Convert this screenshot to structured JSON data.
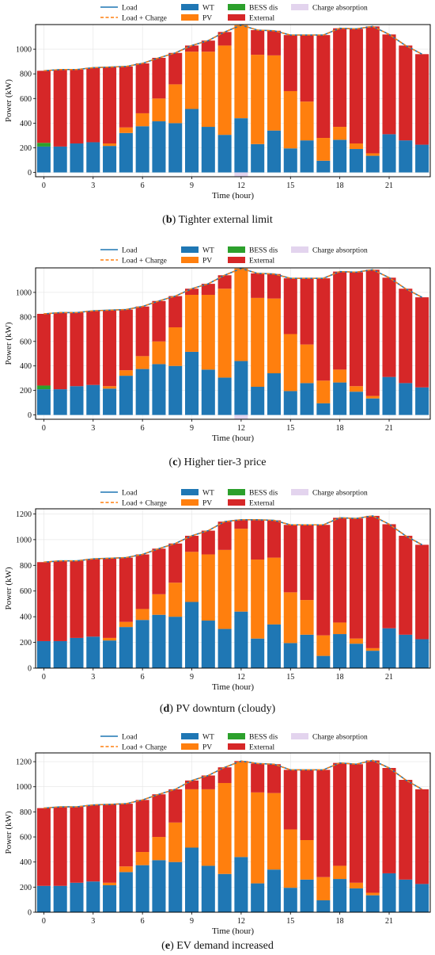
{
  "legend": {
    "load": "Load",
    "load_charge": "Load + Charge",
    "wt": "WT",
    "pv": "PV",
    "bess": "BESS dis",
    "external": "External",
    "charge": "Charge absorption"
  },
  "colors": {
    "wt": "#1f77b4",
    "pv": "#ff7f0e",
    "bess": "#2ca02c",
    "external": "#d62728",
    "charge": "#e3d4ee",
    "load_line": "#1f77b4",
    "load_charge_line": "#ff7f0e"
  },
  "chart_data": [
    {
      "type": "bar",
      "panel": "b",
      "caption_letter": "(b)",
      "caption_text": "Tighter external limit",
      "xlabel": "Time (hour)",
      "ylabel": "Power (kW)",
      "x": [
        0,
        1,
        2,
        3,
        4,
        5,
        6,
        7,
        8,
        9,
        10,
        11,
        12,
        13,
        14,
        15,
        16,
        17,
        18,
        19,
        20,
        21,
        22,
        23
      ],
      "xticks": [
        0,
        3,
        6,
        9,
        12,
        15,
        18,
        21
      ],
      "yticks": [
        0,
        200,
        400,
        600,
        800,
        1000
      ],
      "ylim": [
        -35,
        1200
      ],
      "stacked": true,
      "series": [
        {
          "name": "WT",
          "key": "wt",
          "values": [
            210,
            210,
            235,
            245,
            215,
            320,
            375,
            415,
            400,
            515,
            370,
            305,
            440,
            230,
            340,
            195,
            260,
            95,
            265,
            190,
            135,
            310,
            260,
            225
          ]
        },
        {
          "name": "PV",
          "key": "pv",
          "values": [
            0,
            0,
            0,
            0,
            20,
            45,
            105,
            185,
            315,
            465,
            610,
            725,
            755,
            725,
            610,
            465,
            315,
            185,
            105,
            45,
            20,
            0,
            0,
            0
          ]
        },
        {
          "name": "BESS dis",
          "key": "bess",
          "values": [
            30,
            0,
            0,
            0,
            0,
            0,
            0,
            0,
            0,
            0,
            0,
            0,
            0,
            0,
            0,
            0,
            0,
            0,
            0,
            0,
            0,
            0,
            0,
            0
          ]
        },
        {
          "name": "External",
          "key": "external",
          "values": [
            585,
            625,
            600,
            605,
            620,
            495,
            405,
            330,
            255,
            50,
            90,
            110,
            0,
            200,
            200,
            455,
            540,
            835,
            800,
            930,
            1030,
            810,
            770,
            735
          ]
        },
        {
          "name": "Charge absorption",
          "key": "charge",
          "values": [
            0,
            0,
            0,
            0,
            0,
            0,
            0,
            0,
            0,
            0,
            0,
            0,
            -35,
            0,
            0,
            0,
            0,
            0,
            0,
            0,
            0,
            0,
            0,
            0
          ]
        }
      ],
      "load": [
        825,
        835,
        835,
        850,
        855,
        860,
        885,
        930,
        970,
        1030,
        1070,
        1140,
        1195,
        1155,
        1150,
        1115,
        1115,
        1115,
        1170,
        1165,
        1185,
        1120,
        1030,
        960
      ],
      "load_charge": [
        825,
        835,
        835,
        850,
        855,
        860,
        885,
        930,
        970,
        1030,
        1070,
        1140,
        1195,
        1155,
        1150,
        1115,
        1115,
        1115,
        1170,
        1165,
        1185,
        1120,
        1030,
        960
      ]
    },
    {
      "type": "bar",
      "panel": "c",
      "caption_letter": "(c)",
      "caption_text": "Higher tier-3 price",
      "xlabel": "Time (hour)",
      "ylabel": "Power (kW)",
      "x": [
        0,
        1,
        2,
        3,
        4,
        5,
        6,
        7,
        8,
        9,
        10,
        11,
        12,
        13,
        14,
        15,
        16,
        17,
        18,
        19,
        20,
        21,
        22,
        23
      ],
      "xticks": [
        0,
        3,
        6,
        9,
        12,
        15,
        18,
        21
      ],
      "yticks": [
        0,
        200,
        400,
        600,
        800,
        1000
      ],
      "ylim": [
        -35,
        1200
      ],
      "stacked": true,
      "series": [
        {
          "name": "WT",
          "key": "wt",
          "values": [
            210,
            210,
            235,
            245,
            215,
            320,
            375,
            415,
            400,
            515,
            370,
            305,
            440,
            230,
            340,
            195,
            260,
            95,
            265,
            190,
            135,
            310,
            260,
            225
          ]
        },
        {
          "name": "PV",
          "key": "pv",
          "values": [
            0,
            0,
            0,
            0,
            20,
            45,
            105,
            185,
            315,
            465,
            610,
            725,
            755,
            725,
            610,
            465,
            315,
            185,
            105,
            45,
            20,
            0,
            0,
            0
          ]
        },
        {
          "name": "BESS dis",
          "key": "bess",
          "values": [
            30,
            0,
            0,
            0,
            0,
            0,
            0,
            0,
            0,
            0,
            0,
            0,
            0,
            0,
            0,
            0,
            0,
            0,
            0,
            0,
            0,
            0,
            0,
            0
          ]
        },
        {
          "name": "External",
          "key": "external",
          "values": [
            585,
            625,
            600,
            605,
            620,
            495,
            405,
            330,
            255,
            50,
            90,
            110,
            0,
            200,
            200,
            455,
            540,
            835,
            800,
            930,
            1030,
            810,
            770,
            735
          ]
        },
        {
          "name": "Charge absorption",
          "key": "charge",
          "values": [
            0,
            0,
            0,
            0,
            0,
            0,
            0,
            0,
            0,
            0,
            0,
            0,
            -35,
            0,
            0,
            0,
            0,
            0,
            0,
            0,
            0,
            0,
            0,
            0
          ]
        }
      ],
      "load": [
        825,
        835,
        835,
        850,
        855,
        860,
        885,
        930,
        970,
        1030,
        1070,
        1140,
        1195,
        1155,
        1150,
        1115,
        1115,
        1115,
        1170,
        1165,
        1185,
        1120,
        1030,
        960
      ],
      "load_charge": [
        825,
        835,
        835,
        850,
        855,
        860,
        885,
        930,
        970,
        1030,
        1070,
        1140,
        1195,
        1155,
        1150,
        1115,
        1115,
        1115,
        1170,
        1165,
        1185,
        1120,
        1030,
        960
      ]
    },
    {
      "type": "bar",
      "panel": "d",
      "caption_letter": "(d)",
      "caption_text": "PV downturn (cloudy)",
      "xlabel": "Time (hour)",
      "ylabel": "Power (kW)",
      "x": [
        0,
        1,
        2,
        3,
        4,
        5,
        6,
        7,
        8,
        9,
        10,
        11,
        12,
        13,
        14,
        15,
        16,
        17,
        18,
        19,
        20,
        21,
        22,
        23
      ],
      "xticks": [
        0,
        3,
        6,
        9,
        12,
        15,
        18,
        21
      ],
      "yticks": [
        0,
        200,
        400,
        600,
        800,
        1000,
        1200
      ],
      "ylim": [
        0,
        1240
      ],
      "stacked": true,
      "series": [
        {
          "name": "WT",
          "key": "wt",
          "values": [
            210,
            210,
            235,
            245,
            215,
            320,
            375,
            415,
            400,
            515,
            370,
            305,
            440,
            230,
            340,
            195,
            260,
            95,
            265,
            190,
            135,
            310,
            260,
            225
          ]
        },
        {
          "name": "PV",
          "key": "pv",
          "values": [
            0,
            0,
            0,
            0,
            20,
            40,
            85,
            160,
            265,
            390,
            515,
            615,
            645,
            615,
            520,
            395,
            270,
            160,
            90,
            40,
            20,
            0,
            0,
            0
          ]
        },
        {
          "name": "BESS dis",
          "key": "bess",
          "values": [
            0,
            0,
            0,
            0,
            0,
            0,
            0,
            0,
            0,
            0,
            0,
            0,
            0,
            0,
            0,
            0,
            0,
            0,
            0,
            0,
            0,
            0,
            0,
            0
          ]
        },
        {
          "name": "External",
          "key": "external",
          "values": [
            615,
            625,
            600,
            605,
            620,
            500,
            425,
            355,
            305,
            125,
            185,
            220,
            70,
            310,
            290,
            525,
            585,
            860,
            815,
            935,
            1030,
            810,
            770,
            735
          ]
        },
        {
          "name": "Charge absorption",
          "key": "charge",
          "values": [
            0,
            0,
            0,
            0,
            0,
            0,
            0,
            0,
            0,
            0,
            0,
            0,
            0,
            0,
            0,
            0,
            0,
            0,
            0,
            0,
            0,
            0,
            0,
            0
          ]
        }
      ],
      "load": [
        825,
        835,
        835,
        850,
        855,
        860,
        885,
        930,
        970,
        1030,
        1070,
        1140,
        1155,
        1155,
        1150,
        1115,
        1115,
        1115,
        1170,
        1165,
        1185,
        1120,
        1030,
        960
      ],
      "load_charge": [
        825,
        835,
        835,
        850,
        855,
        860,
        885,
        930,
        970,
        1030,
        1070,
        1140,
        1155,
        1155,
        1150,
        1115,
        1115,
        1115,
        1170,
        1165,
        1185,
        1120,
        1030,
        960
      ]
    },
    {
      "type": "bar",
      "panel": "e",
      "caption_letter": "(e)",
      "caption_text": "EV demand increased",
      "xlabel": "Time (hour)",
      "ylabel": "Power (kW)",
      "x": [
        0,
        1,
        2,
        3,
        4,
        5,
        6,
        7,
        8,
        9,
        10,
        11,
        12,
        13,
        14,
        15,
        16,
        17,
        18,
        19,
        20,
        21,
        22,
        23
      ],
      "xticks": [
        0,
        3,
        6,
        9,
        12,
        15,
        18,
        21
      ],
      "yticks": [
        0,
        200,
        400,
        600,
        800,
        1000,
        1200
      ],
      "ylim": [
        0,
        1270
      ],
      "stacked": true,
      "series": [
        {
          "name": "WT",
          "key": "wt",
          "values": [
            210,
            210,
            235,
            245,
            215,
            320,
            375,
            415,
            400,
            515,
            370,
            305,
            440,
            230,
            340,
            195,
            260,
            95,
            265,
            190,
            135,
            310,
            260,
            225
          ]
        },
        {
          "name": "PV",
          "key": "pv",
          "values": [
            0,
            0,
            0,
            0,
            20,
            45,
            105,
            185,
            315,
            465,
            610,
            725,
            755,
            725,
            610,
            465,
            315,
            185,
            105,
            45,
            20,
            0,
            0,
            0
          ]
        },
        {
          "name": "BESS dis",
          "key": "bess",
          "values": [
            0,
            0,
            0,
            0,
            0,
            0,
            0,
            0,
            0,
            0,
            0,
            0,
            0,
            0,
            0,
            0,
            0,
            0,
            0,
            0,
            0,
            0,
            0,
            0
          ]
        },
        {
          "name": "External",
          "key": "external",
          "values": [
            620,
            630,
            605,
            610,
            625,
            500,
            415,
            340,
            265,
            70,
            110,
            125,
            10,
            230,
            230,
            475,
            560,
            855,
            820,
            945,
            1055,
            840,
            795,
            755
          ]
        },
        {
          "name": "Charge absorption",
          "key": "charge",
          "values": [
            0,
            0,
            0,
            0,
            0,
            0,
            0,
            0,
            0,
            0,
            0,
            0,
            0,
            0,
            0,
            0,
            0,
            0,
            0,
            0,
            0,
            0,
            0,
            0
          ]
        }
      ],
      "load": [
        830,
        840,
        840,
        855,
        860,
        865,
        895,
        940,
        980,
        1050,
        1090,
        1155,
        1205,
        1185,
        1180,
        1135,
        1135,
        1135,
        1190,
        1180,
        1210,
        1150,
        1055,
        980
      ],
      "load_charge": [
        830,
        840,
        840,
        855,
        860,
        865,
        895,
        940,
        980,
        1050,
        1090,
        1155,
        1205,
        1185,
        1180,
        1135,
        1135,
        1135,
        1190,
        1180,
        1210,
        1150,
        1055,
        980
      ]
    }
  ]
}
